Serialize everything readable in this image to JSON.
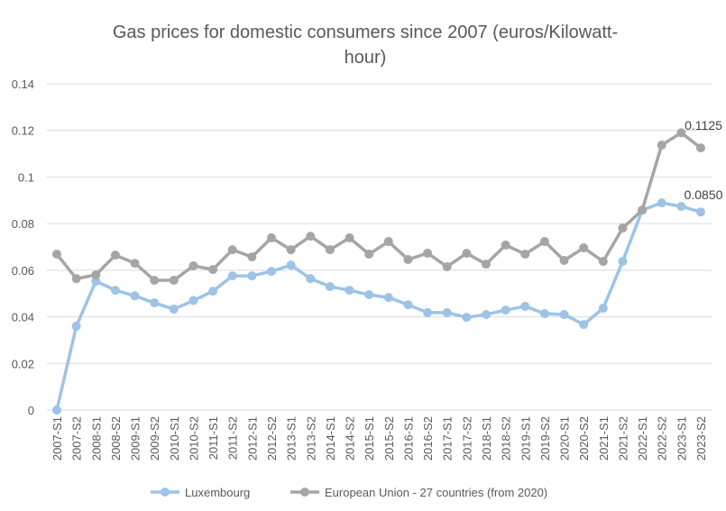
{
  "chart_data": {
    "type": "line",
    "title_lines": [
      "Gas prices for domestic consumers since 2007 (euros/Kilowatt-",
      "hour)"
    ],
    "xlabel": "",
    "ylabel": "",
    "ylim": [
      0,
      0.14
    ],
    "yticks": [
      "0",
      "0.02",
      "0.04",
      "0.06",
      "0.08",
      "0.1",
      "0.12",
      "0.14"
    ],
    "grid": true,
    "legend_position": "bottom",
    "categories": [
      "2007-S1",
      "2007-S2",
      "2008-S1",
      "2008-S2",
      "2009-S1",
      "2009-S2",
      "2010-S1",
      "2010-S2",
      "2011-S1",
      "2011-S2",
      "2012-S1",
      "2012-S2",
      "2013-S1",
      "2013-S2",
      "2014-S1",
      "2014-S2",
      "2015-S1",
      "2015-S2",
      "2016-S1",
      "2016-S2",
      "2017-S1",
      "2017-S2",
      "2018-S1",
      "2018-S2",
      "2019-S1",
      "2019-S2",
      "2020-S1",
      "2020-S2",
      "2021-S1",
      "2021-S2",
      "2022-S1",
      "2022-S2",
      "2023-S1",
      "2023-S2"
    ],
    "series": [
      {
        "name": "Luxembourg",
        "color": "#9dc3e6",
        "values": [
          0,
          0.036,
          0.0553,
          0.0514,
          0.049,
          0.046,
          0.0433,
          0.047,
          0.051,
          0.0576,
          0.0576,
          0.0595,
          0.0622,
          0.0564,
          0.053,
          0.0514,
          0.0495,
          0.0483,
          0.0452,
          0.0418,
          0.0418,
          0.0398,
          0.041,
          0.0429,
          0.0445,
          0.0414,
          0.041,
          0.0367,
          0.0437,
          0.0638,
          0.0858,
          0.0889,
          0.0874,
          0.085
        ],
        "last_label": "0.0850"
      },
      {
        "name": "European Union - 27 countries (from 2020)",
        "color": "#a5a5a5",
        "values": [
          0.0669,
          0.0564,
          0.058,
          0.0665,
          0.063,
          0.0557,
          0.0557,
          0.0619,
          0.0603,
          0.0688,
          0.0657,
          0.0739,
          0.0688,
          0.0746,
          0.0688,
          0.0739,
          0.0669,
          0.0723,
          0.0646,
          0.0673,
          0.0615,
          0.0673,
          0.0626,
          0.0708,
          0.0669,
          0.0723,
          0.0642,
          0.0696,
          0.0638,
          0.0781,
          0.0858,
          0.1137,
          0.119,
          0.1125
        ],
        "last_label": "0.1125"
      }
    ]
  }
}
